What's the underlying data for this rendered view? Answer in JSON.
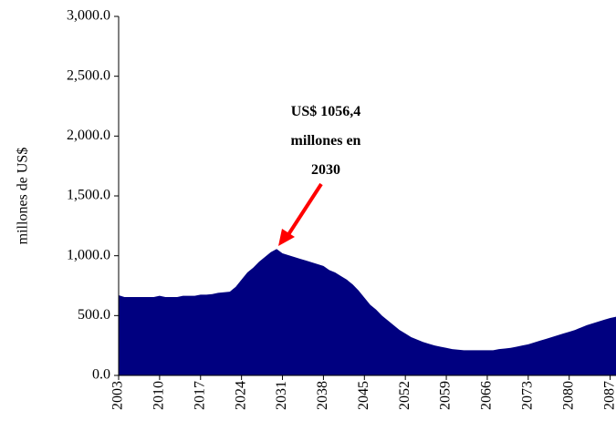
{
  "chart_data": {
    "type": "area",
    "y_label": "millones de US$",
    "annotation": [
      "US$ 1056,4",
      "millones en",
      "2030"
    ],
    "annotation_color": "#ff0000",
    "color": "#000080",
    "categories": [
      "2003",
      null,
      null,
      null,
      null,
      null,
      null,
      "2010",
      null,
      null,
      null,
      null,
      null,
      null,
      "2017",
      null,
      null,
      null,
      null,
      null,
      null,
      "2024",
      null,
      null,
      null,
      null,
      null,
      null,
      "2031",
      null,
      null,
      null,
      null,
      null,
      null,
      "2038",
      null,
      null,
      null,
      null,
      null,
      null,
      "2045",
      null,
      null,
      null,
      null,
      null,
      null,
      "2052",
      null,
      null,
      null,
      null,
      null,
      null,
      "2059",
      null,
      null,
      null,
      null,
      null,
      null,
      "2066",
      null,
      null,
      null,
      null,
      null,
      null,
      "2073",
      null,
      null,
      null,
      null,
      null,
      null,
      "2080",
      null,
      null,
      null,
      null,
      null,
      null,
      "2087",
      null
    ],
    "values": [
      670,
      655,
      655,
      655,
      655,
      655,
      655,
      665,
      655,
      655,
      655,
      665,
      665,
      665,
      675,
      675,
      680,
      690,
      695,
      700,
      740,
      800,
      860,
      900,
      950,
      990,
      1030,
      1056.4,
      1020,
      1005,
      990,
      975,
      960,
      945,
      930,
      915,
      880,
      860,
      830,
      800,
      760,
      710,
      650,
      590,
      550,
      500,
      460,
      420,
      380,
      350,
      320,
      300,
      280,
      265,
      250,
      240,
      230,
      220,
      215,
      210,
      210,
      210,
      210,
      210,
      210,
      220,
      225,
      230,
      240,
      250,
      260,
      275,
      290,
      305,
      320,
      335,
      350,
      365,
      380,
      400,
      420,
      435,
      450,
      465,
      480,
      490
    ],
    "ylim": [
      0,
      3000
    ],
    "yticks": [
      {
        "value": 0,
        "label": "0.0"
      },
      {
        "value": 500,
        "label": "500.0"
      },
      {
        "value": 1000,
        "label": "1,000.0"
      },
      {
        "value": 1500,
        "label": "1,500.0"
      },
      {
        "value": 2000,
        "label": "2,000.0"
      },
      {
        "value": 2500,
        "label": "2,500.0"
      },
      {
        "value": 3000,
        "label": "3,000.0"
      }
    ]
  }
}
